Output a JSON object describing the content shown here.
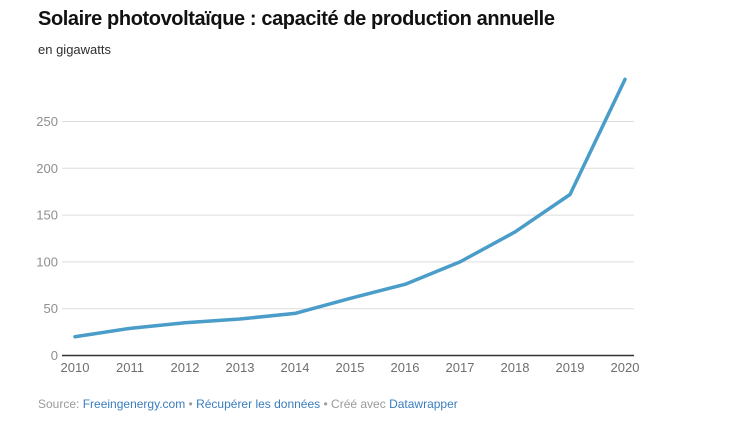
{
  "chart_data": {
    "type": "line",
    "title": "Solaire photovoltaïque : capacité de production annuelle",
    "subtitle": "en gigawatts",
    "categories": [
      "2010",
      "2011",
      "2012",
      "2013",
      "2014",
      "2015",
      "2016",
      "2017",
      "2018",
      "2019",
      "2020"
    ],
    "values": [
      20,
      29,
      35,
      39,
      45,
      61,
      76,
      100,
      132,
      172,
      295
    ],
    "ylim": [
      0,
      300
    ],
    "yticks": [
      0,
      50,
      100,
      150,
      200,
      250
    ],
    "grid": true,
    "legend": "none",
    "xlabel": "",
    "ylabel": "en gigawatts"
  },
  "colors": {
    "line": "#4a9dc9",
    "grid": "#dddddd",
    "axis": "#333333",
    "y_tick_label": "#8e8e8e",
    "x_tick_label": "#6f6f6f",
    "footer_text": "#9a9a9a",
    "link": "#3a7dbf"
  },
  "footer": {
    "segments": [
      {
        "text": "Source: "
      },
      {
        "text": "Freeingenergy.com"
      },
      {
        "text": " • "
      },
      {
        "text": "Récupérer les données"
      },
      {
        "text": " • Créé avec "
      },
      {
        "text": "Datawrapper"
      }
    ]
  }
}
